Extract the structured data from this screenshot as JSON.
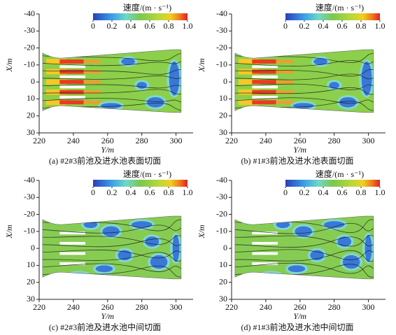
{
  "chart_data": [
    {
      "type": "flow-field",
      "caption": "(a) #2#3前池及进水池表面切面",
      "xlabel": "Y/m",
      "ylabel": "X/m",
      "xlim": [
        220,
        310
      ],
      "xticks": [
        220,
        240,
        260,
        280,
        300
      ],
      "ylim": [
        -40,
        30
      ],
      "y_inverted": true,
      "yticks": [
        -40,
        -30,
        -20,
        -10,
        0,
        10,
        20,
        30
      ],
      "colorbar": {
        "title": "速度/(m · s⁻¹)",
        "lim": [
          0,
          1
        ],
        "ticks": [
          0,
          0.2,
          0.4,
          0.6,
          0.8,
          {
            "value": 1,
            "label": "1.0"
          }
        ]
      }
    },
    {
      "type": "flow-field",
      "caption": "(b) #1#3前池及进水池表面切面",
      "xlabel": "Y/m",
      "ylabel": "X/m",
      "xlim": [
        220,
        310
      ],
      "xticks": [
        220,
        240,
        260,
        280,
        300
      ],
      "ylim": [
        -40,
        30
      ],
      "y_inverted": true,
      "yticks": [
        -40,
        -30,
        -20,
        -10,
        0,
        10,
        20,
        30
      ],
      "colorbar": {
        "title": "速度/(m · s⁻¹)",
        "lim": [
          0,
          1
        ],
        "ticks": [
          0,
          0.2,
          0.4,
          0.6,
          0.8,
          {
            "value": 1,
            "label": "1.0"
          }
        ]
      }
    },
    {
      "type": "flow-field",
      "caption": "(c) #2#3前池及进水池中间切面",
      "xlabel": "Y/m",
      "ylabel": "X/m",
      "xlim": [
        220,
        310
      ],
      "xticks": [
        220,
        240,
        260,
        280,
        300
      ],
      "ylim": [
        -40,
        30
      ],
      "y_inverted": true,
      "yticks": [
        -40,
        -30,
        -20,
        -10,
        0,
        10,
        20,
        30
      ],
      "colorbar": {
        "title": "速度/(m · s⁻¹)",
        "lim": [
          0,
          1
        ],
        "ticks": [
          0,
          0.2,
          0.4,
          0.6,
          0.8,
          {
            "value": 1,
            "label": "1.0"
          }
        ]
      }
    },
    {
      "type": "flow-field",
      "caption": "(d) #1#3前池及进水池中间切面",
      "xlabel": "Y/m",
      "ylabel": "X/m",
      "xlim": [
        220,
        310
      ],
      "xticks": [
        220,
        240,
        260,
        280,
        300
      ],
      "ylim": [
        -40,
        30
      ],
      "y_inverted": true,
      "yticks": [
        -40,
        -30,
        -20,
        -10,
        0,
        10,
        20,
        30
      ],
      "colorbar": {
        "title": "速度/(m · s⁻¹)",
        "lim": [
          0,
          1
        ],
        "ticks": [
          0,
          0.2,
          0.4,
          0.6,
          0.8,
          {
            "value": 1,
            "label": "1.0"
          }
        ]
      }
    }
  ]
}
